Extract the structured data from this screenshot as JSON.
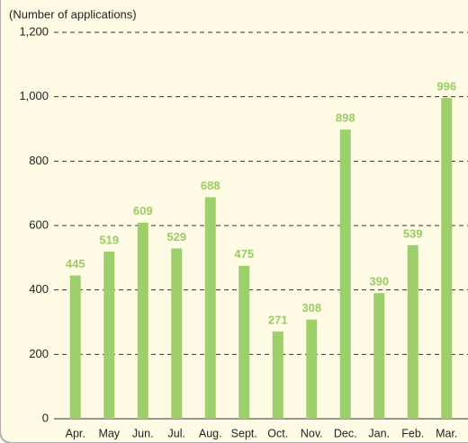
{
  "chart_data": {
    "type": "bar",
    "y_axis_label": "(Number of applications)",
    "categories": [
      "Apr.",
      "May",
      "Jun.",
      "Jul.",
      "Aug.",
      "Sept.",
      "Oct.",
      "Nov.",
      "Dec.",
      "Jan.",
      "Feb.",
      "Mar."
    ],
    "values": [
      445,
      519,
      609,
      529,
      688,
      475,
      271,
      308,
      898,
      390,
      539,
      996
    ],
    "color": "#9dcf6b",
    "ylim": [
      0,
      1200
    ],
    "yticks": [
      0,
      200,
      400,
      600,
      800,
      {
        "value": 1000,
        "label": "1,000"
      },
      {
        "value": 1200,
        "label": "1,200"
      }
    ],
    "grid": true
  }
}
